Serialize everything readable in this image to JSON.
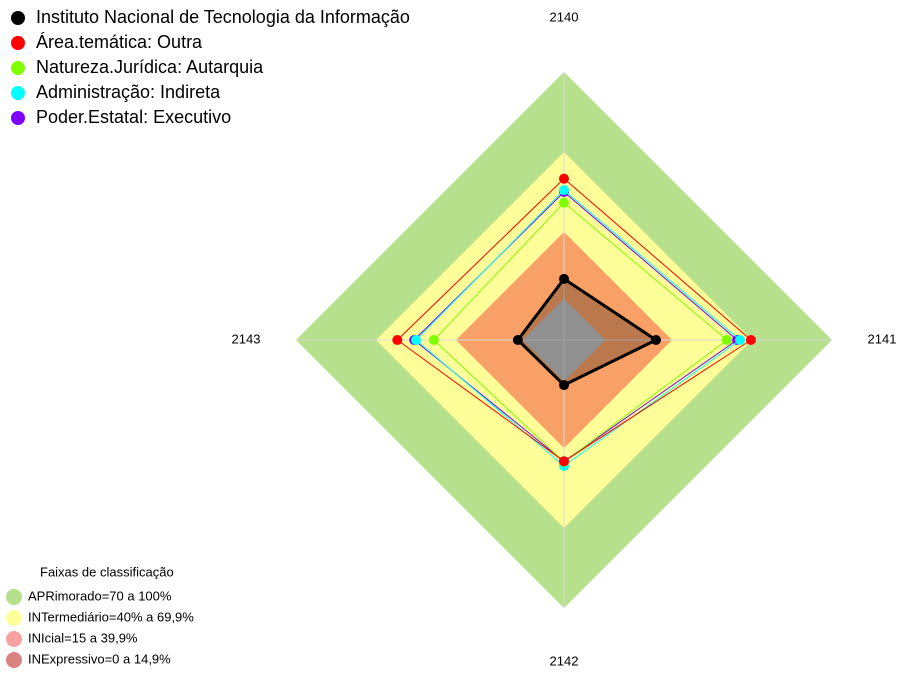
{
  "chart_data": {
    "type": "radar",
    "axes": [
      "2140",
      "2141",
      "2142",
      "2143"
    ],
    "rlim": [
      -0.5,
      100
    ],
    "bands": {
      "title": "Faixas de classificação",
      "items": [
        {
          "name": "APRimorado=70 a 100%",
          "value": 100,
          "color": "#b7e08c",
          "legend_color": "#b7e08c"
        },
        {
          "name": "INTermediário=40% a 69,9%",
          "value": 70,
          "color": "#ffff99",
          "legend_color": "#ffff99"
        },
        {
          "name": "INIcial=15 a 39,9%",
          "value": 40,
          "color": "#f9a066",
          "legend_color": "#f7a1a1"
        },
        {
          "name": "INExpressivo=0 a 14,9%",
          "value": 15,
          "color": "#c0c0c0",
          "legend_color": "#d98282"
        }
      ]
    },
    "series": [
      {
        "name": "Instituto Nacional de Tecnologia da Informação",
        "color": "#000000",
        "values": [
          22.4,
          34,
          16.4,
          16.8
        ]
      },
      {
        "name": "Área.temática: Outra",
        "color": "#ff0000",
        "values": [
          60,
          69.6,
          45,
          62
        ]
      },
      {
        "name": "Natureza.Jurídica: Autarquia",
        "color": "#80ff00",
        "values": [
          51,
          60.6,
          45.2,
          48.3
        ]
      },
      {
        "name": "Administração: Indireta",
        "color": "#00ffff",
        "values": [
          55.7,
          65.5,
          46.7,
          55
        ]
      },
      {
        "name": "Poder.Estatal: Executivo",
        "color": "#8000ff",
        "values": [
          55,
          64.4,
          45,
          55.7
        ]
      }
    ]
  }
}
